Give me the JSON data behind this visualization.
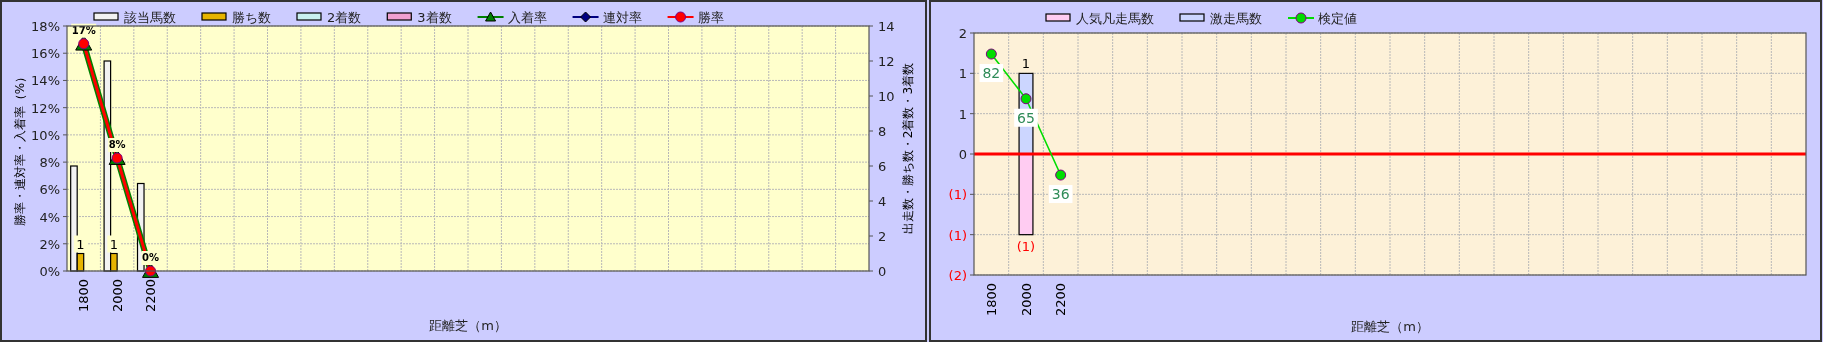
{
  "chart_data": [
    {
      "type": "bar",
      "xlabel": "距離芝（m）",
      "ylabel": "勝率・連対率・入着率（%）",
      "y2label": "出走数・勝ち数・2着数・3着数",
      "categories": [
        "1800",
        "2000",
        "2200",
        null,
        null,
        null,
        null,
        null,
        null,
        null,
        null,
        null,
        null,
        null,
        null,
        null,
        null,
        null,
        null,
        null,
        null,
        null,
        null,
        null
      ],
      "ylim": [
        0,
        18
      ],
      "yticks": [
        {
          "value": 0,
          "label": "0%"
        },
        {
          "value": 2,
          "label": "2%"
        },
        {
          "value": 4,
          "label": "4%"
        },
        {
          "value": 6,
          "label": "6%"
        },
        {
          "value": 8,
          "label": "8%"
        },
        {
          "value": 10,
          "label": "10%"
        },
        {
          "value": 12,
          "label": "12%"
        },
        {
          "value": 14,
          "label": "14%"
        },
        {
          "value": 16,
          "label": "16%"
        },
        {
          "value": 18,
          "label": "18%"
        }
      ],
      "y2lim": [
        0,
        14
      ],
      "y2ticks": [
        0,
        2,
        4,
        6,
        8,
        10,
        12,
        14
      ],
      "grid": true,
      "legend": "top",
      "series": [
        {
          "name": "該当馬数",
          "type": "bar",
          "axis": "y2",
          "color": "#f2f2f2",
          "values": [
            6,
            12,
            5,
            null,
            null,
            null,
            null,
            null,
            null,
            null,
            null,
            null,
            null,
            null,
            null,
            null,
            null,
            null,
            null,
            null,
            null,
            null,
            null,
            null
          ]
        },
        {
          "name": "勝ち数",
          "type": "bar",
          "axis": "y2",
          "color": "#e6b400",
          "values": [
            1,
            1,
            0,
            null,
            null,
            null,
            null,
            null,
            null,
            null,
            null,
            null,
            null,
            null,
            null,
            null,
            null,
            null,
            null,
            null,
            null,
            null,
            null,
            null
          ],
          "value_labels": [
            "1",
            "1",
            null,
            null,
            null,
            null,
            null,
            null,
            null,
            null,
            null,
            null,
            null,
            null,
            null,
            null,
            null,
            null,
            null,
            null,
            null,
            null,
            null,
            null
          ]
        },
        {
          "name": "2着数",
          "type": "bar",
          "axis": "y2",
          "color": "#c8f0f0",
          "values": [
            0,
            0,
            0,
            null,
            null,
            null,
            null,
            null,
            null,
            null,
            null,
            null,
            null,
            null,
            null,
            null,
            null,
            null,
            null,
            null,
            null,
            null,
            null,
            null
          ]
        },
        {
          "name": "3着数",
          "type": "bar",
          "axis": "y2",
          "color": "#f0a0d0",
          "values": [
            0,
            0,
            0,
            null,
            null,
            null,
            null,
            null,
            null,
            null,
            null,
            null,
            null,
            null,
            null,
            null,
            null,
            null,
            null,
            null,
            null,
            null,
            null,
            null
          ]
        },
        {
          "name": "入着率",
          "type": "line",
          "color": "#008000",
          "marker": "triangle",
          "values": [
            16.7,
            8.3,
            0,
            null,
            null,
            null,
            null,
            null,
            null,
            null,
            null,
            null,
            null,
            null,
            null,
            null,
            null,
            null,
            null,
            null,
            null,
            null,
            null,
            null
          ]
        },
        {
          "name": "連対率",
          "type": "line",
          "color": "#000080",
          "marker": "diamond",
          "values": [
            null,
            null,
            null,
            null,
            null,
            null,
            null,
            null,
            null,
            null,
            null,
            null,
            null,
            null,
            null,
            null,
            null,
            null,
            null,
            null,
            null,
            null,
            null,
            null
          ]
        },
        {
          "name": "勝率",
          "type": "line",
          "color": "#ff0000",
          "marker": "circle",
          "values": [
            16.7,
            8.3,
            0,
            null,
            null,
            null,
            null,
            null,
            null,
            null,
            null,
            null,
            null,
            null,
            null,
            null,
            null,
            null,
            null,
            null,
            null,
            null,
            null,
            null
          ],
          "value_labels": [
            "17%",
            "8%",
            "0%",
            null,
            null,
            null,
            null,
            null,
            null,
            null,
            null,
            null,
            null,
            null,
            null,
            null,
            null,
            null,
            null,
            null,
            null,
            null,
            null,
            null
          ]
        }
      ]
    },
    {
      "type": "bar",
      "xlabel": "距離芝（m）",
      "categories": [
        "1800",
        "2000",
        "2200",
        null,
        null,
        null,
        null,
        null,
        null,
        null,
        null,
        null,
        null,
        null,
        null,
        null,
        null,
        null,
        null,
        null,
        null,
        null,
        null,
        null
      ],
      "ylim": [
        -1.5,
        1.5
      ],
      "yticks": [
        {
          "value": -1.5,
          "label": "(2)"
        },
        {
          "value": -1,
          "label": "(1)"
        },
        {
          "value": -0.5,
          "label": "(1)"
        },
        0,
        {
          "value": 0.5,
          "label": "1"
        },
        1,
        {
          "value": 1.5,
          "label": "2"
        }
      ],
      "y2lim": [
        -2,
        90
      ],
      "stacked": true,
      "grid": true,
      "legend": "top",
      "ref_lines": [
        {
          "axis": "y",
          "value": 0,
          "color": "#ff0000"
        }
      ],
      "series": [
        {
          "name": "人気凡走馬数",
          "type": "bar",
          "color": "#ffccf2",
          "values": [
            null,
            -1,
            null,
            null,
            null,
            null,
            null,
            null,
            null,
            null,
            null,
            null,
            null,
            null,
            null,
            null,
            null,
            null,
            null,
            null,
            null,
            null,
            null,
            null
          ],
          "value_labels": [
            null,
            "(1)",
            null,
            null,
            null,
            null,
            null,
            null,
            null,
            null,
            null,
            null,
            null,
            null,
            null,
            null,
            null,
            null,
            null,
            null,
            null,
            null,
            null,
            null
          ]
        },
        {
          "name": "激走馬数",
          "type": "bar",
          "color": "#ccd6ff",
          "values": [
            null,
            1,
            null,
            null,
            null,
            null,
            null,
            null,
            null,
            null,
            null,
            null,
            null,
            null,
            null,
            null,
            null,
            null,
            null,
            null,
            null,
            null,
            null,
            null
          ],
          "value_labels": [
            null,
            "1",
            null,
            null,
            null,
            null,
            null,
            null,
            null,
            null,
            null,
            null,
            null,
            null,
            null,
            null,
            null,
            null,
            null,
            null,
            null,
            null,
            null,
            null
          ]
        },
        {
          "name": "検定値",
          "type": "line",
          "axis": "y2",
          "color": "#00dd00",
          "marker": "circle",
          "values": [
            82,
            65,
            36,
            null,
            null,
            null,
            null,
            null,
            null,
            null,
            null,
            null,
            null,
            null,
            null,
            null,
            null,
            null,
            null,
            null,
            null,
            null,
            null,
            null
          ],
          "value_labels": [
            "82",
            "65",
            "36",
            null,
            null,
            null,
            null,
            null,
            null,
            null,
            null,
            null,
            null,
            null,
            null,
            null,
            null,
            null,
            null,
            null,
            null,
            null,
            null,
            null
          ]
        }
      ]
    }
  ]
}
